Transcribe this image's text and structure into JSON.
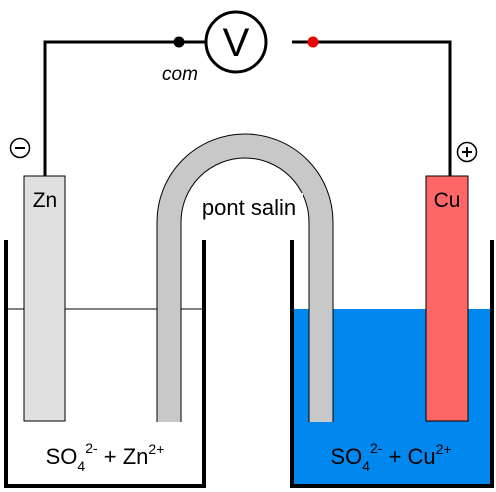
{
  "voltmeter": {
    "symbol": "V",
    "com_label": "com"
  },
  "electrodes": {
    "left": {
      "label": "Zn",
      "polarity": "⊖"
    },
    "right": {
      "label": "Cu",
      "polarity": "⊕"
    }
  },
  "salt_bridge": {
    "label": "pont salin"
  },
  "solutions": {
    "left": {
      "base": "SO",
      "sub": "4",
      "sup1": "2-",
      "mid": " + Zn",
      "sup2": "2+"
    },
    "right": {
      "base": "SO",
      "sub": "4",
      "sup1": "2-",
      "mid": " + Cu",
      "sup2": "2+"
    }
  },
  "colors": {
    "wire": "#000000",
    "zinc": "#e0e0e0",
    "copper": "#ff6666",
    "bridge": "#c8c8c8",
    "solution_right": "#0088ee",
    "com_terminal": "#000000",
    "positive_terminal": "#ee0000"
  }
}
